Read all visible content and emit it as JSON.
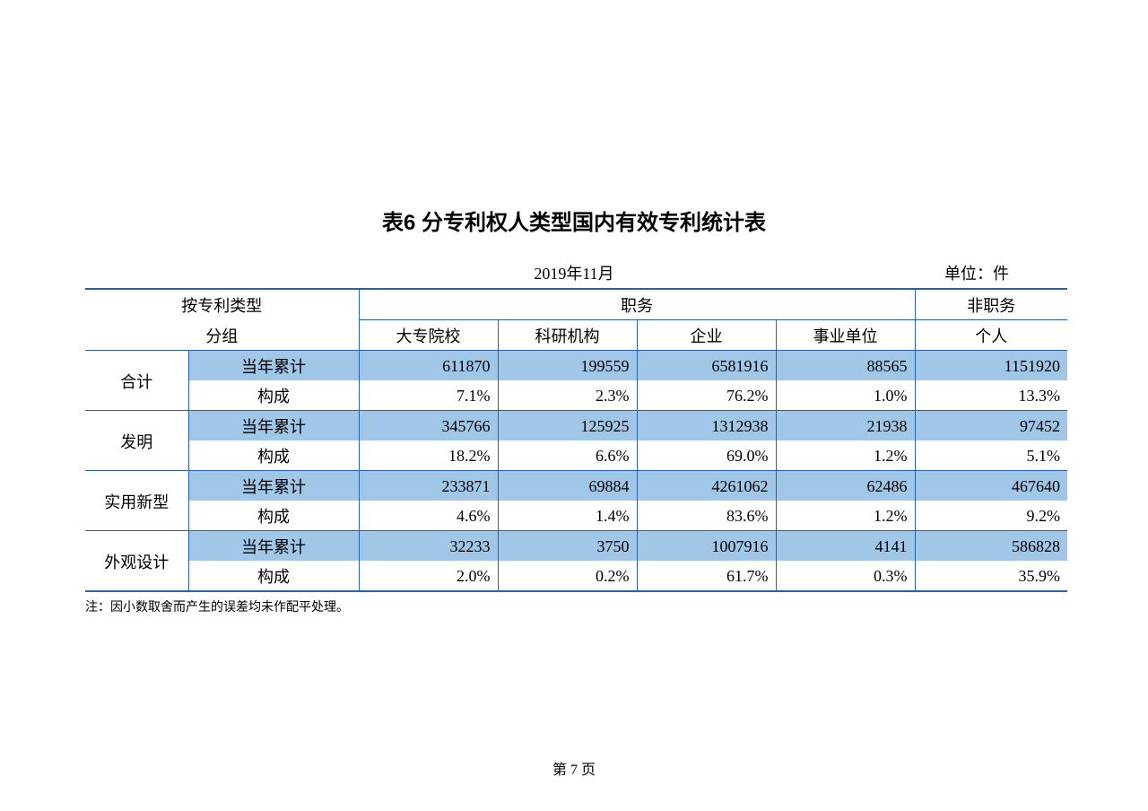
{
  "title": "表6  分专利权人类型国内有效专利统计表",
  "date": "2019年11月",
  "unit_label": "单位：件",
  "footnote": "注：因小数取舍而产生的误差均未作配平处理。",
  "page_label": "第 7 页",
  "colors": {
    "border": "#2a5db0",
    "shade": "#a0c6e8",
    "background": "#ffffff",
    "text": "#000000"
  },
  "fontsize": {
    "title": 24,
    "body": 18,
    "note": 14,
    "pagenum": 16
  },
  "header": {
    "group_label_l1": "按专利类型",
    "group_label_l2": "分组",
    "duty_label": "职务",
    "nonduty_label": "非职务",
    "cols": [
      "大专院校",
      "科研机构",
      "企业",
      "事业单位",
      "个人"
    ]
  },
  "row_labels": {
    "cumulative": "当年累计",
    "composition": "构成"
  },
  "categories": [
    "合计",
    "发明",
    "实用新型",
    "外观设计"
  ],
  "data": {
    "cumulative": [
      [
        "611870",
        "199559",
        "6581916",
        "88565",
        "1151920"
      ],
      [
        "345766",
        "125925",
        "1312938",
        "21938",
        "97452"
      ],
      [
        "233871",
        "69884",
        "4261062",
        "62486",
        "467640"
      ],
      [
        "32233",
        "3750",
        "1007916",
        "4141",
        "586828"
      ]
    ],
    "composition": [
      [
        "7.1%",
        "2.3%",
        "76.2%",
        "1.0%",
        "13.3%"
      ],
      [
        "18.2%",
        "6.6%",
        "69.0%",
        "1.2%",
        "5.1%"
      ],
      [
        "4.6%",
        "1.4%",
        "83.6%",
        "1.2%",
        "9.2%"
      ],
      [
        "2.0%",
        "0.2%",
        "61.7%",
        "0.3%",
        "35.9%"
      ]
    ]
  }
}
